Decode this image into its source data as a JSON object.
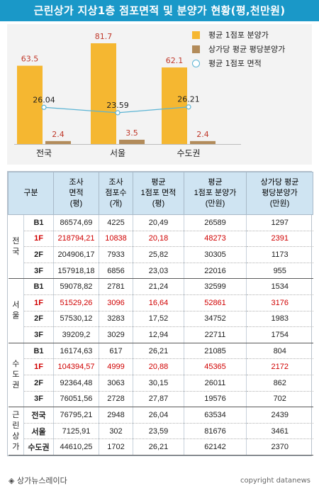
{
  "title": "근린상가 지상1층 점포면적 및 분양가 현황(평,천만원)",
  "colors": {
    "bar1": "#f5b731",
    "bar2": "#b28b5a",
    "line": "#5bb4d4",
    "header": "#1a98c8",
    "highlight": "#d00000"
  },
  "chart_data": {
    "type": "bar",
    "categories": [
      "전국",
      "서울",
      "수도권"
    ],
    "series": [
      {
        "name": "평균 1점포 분양가",
        "kind": "bar",
        "values": [
          63.5,
          81.7,
          62.1
        ]
      },
      {
        "name": "상가당 평균 평당분양가",
        "kind": "bar",
        "values": [
          2.4,
          3.5,
          2.4
        ]
      },
      {
        "name": "평균 1점포 면적",
        "kind": "line",
        "values": [
          26.04,
          23.59,
          26.21
        ]
      }
    ],
    "value_labels": [
      [
        "63.5",
        "81.7",
        "62.1"
      ],
      [
        "2.4",
        "3.5",
        "2.4"
      ],
      [
        "26.04",
        "23.59",
        "26.21"
      ]
    ],
    "ylim": [
      0,
      90
    ],
    "legend_position": "top-right",
    "grid": false
  },
  "table": {
    "headers": [
      "구분",
      "조사\n면적\n(평)",
      "조사\n점포수\n(개)",
      "평균\n1점포 면적\n(평)",
      "평균\n1점포 분양가\n(만원)",
      "상가당 평균\n평당분양가\n(만원)"
    ],
    "groups": [
      {
        "region": "전\n국",
        "rows": [
          {
            "floor": "B1",
            "cells": [
              "86574,69",
              "4225",
              "20,49",
              "26589",
              "1297"
            ],
            "hl": false
          },
          {
            "floor": "1F",
            "cells": [
              "218794,21",
              "10838",
              "20,18",
              "48273",
              "2391"
            ],
            "hl": true
          },
          {
            "floor": "2F",
            "cells": [
              "204906,17",
              "7933",
              "25,82",
              "30305",
              "1173"
            ],
            "hl": false
          },
          {
            "floor": "3F",
            "cells": [
              "157918,18",
              "6856",
              "23,03",
              "22016",
              "955"
            ],
            "hl": false
          }
        ]
      },
      {
        "region": "서\n울",
        "rows": [
          {
            "floor": "B1",
            "cells": [
              "59078,82",
              "2781",
              "21,24",
              "32599",
              "1534"
            ],
            "hl": false
          },
          {
            "floor": "1F",
            "cells": [
              "51529,26",
              "3096",
              "16,64",
              "52861",
              "3176"
            ],
            "hl": true
          },
          {
            "floor": "2F",
            "cells": [
              "57530,12",
              "3283",
              "17,52",
              "34752",
              "1983"
            ],
            "hl": false
          },
          {
            "floor": "3F",
            "cells": [
              "39209,2",
              "3029",
              "12,94",
              "22711",
              "1754"
            ],
            "hl": false
          }
        ]
      },
      {
        "region": "수\n도\n권",
        "rows": [
          {
            "floor": "B1",
            "cells": [
              "16174,63",
              "617",
              "26,21",
              "21085",
              "804"
            ],
            "hl": false
          },
          {
            "floor": "1F",
            "cells": [
              "104394,57",
              "4999",
              "20,88",
              "45365",
              "2172"
            ],
            "hl": true
          },
          {
            "floor": "2F",
            "cells": [
              "92364,48",
              "3063",
              "30,15",
              "26011",
              "862"
            ],
            "hl": false
          },
          {
            "floor": "3F",
            "cells": [
              "76051,56",
              "2728",
              "27,87",
              "19576",
              "702"
            ],
            "hl": false
          }
        ]
      },
      {
        "region": "근\n린\n상\n가",
        "rows": [
          {
            "floor": "전국",
            "cells": [
              "76795,21",
              "2948",
              "26,04",
              "63534",
              "2439"
            ],
            "hl": false
          },
          {
            "floor": "서울",
            "cells": [
              "7125,91",
              "302",
              "23,59",
              "81676",
              "3461"
            ],
            "hl": false
          },
          {
            "floor": "수도권",
            "cells": [
              "44610,25",
              "1702",
              "26,21",
              "62142",
              "2370"
            ],
            "hl": false
          }
        ]
      }
    ]
  },
  "footer": {
    "source": "◈ 상가뉴스레이다",
    "copyright": "copyright datanews"
  }
}
